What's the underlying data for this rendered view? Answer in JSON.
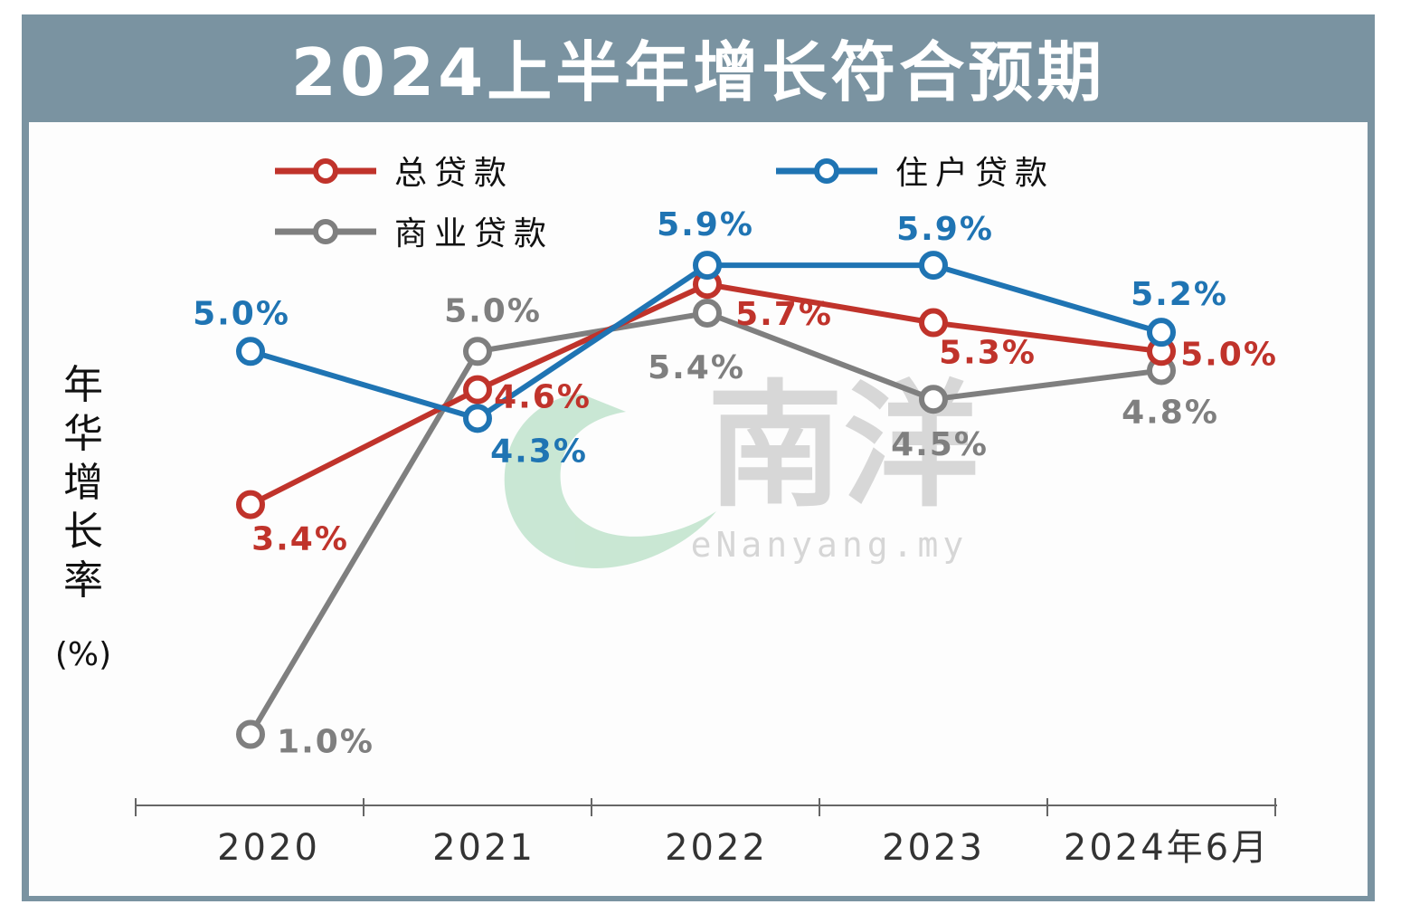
{
  "title": "2024上半年增长符合预期",
  "watermark": {
    "logo_text": "南洋",
    "site": "eNanyang.my"
  },
  "chart_data": {
    "type": "line",
    "title": "2024上半年增长符合预期",
    "categories": [
      "2020",
      "2021",
      "2022",
      "2023",
      "2024年6月"
    ],
    "ylabel_chars": [
      "年",
      "华",
      "增",
      "长",
      "率"
    ],
    "ylabel_unit": "(%)",
    "xlabel": "",
    "ylim": [
      0.5,
      6.2
    ],
    "grid": false,
    "legend_position": "top-left",
    "series": [
      {
        "name": "总贷款",
        "color": "#c0332b",
        "values": [
          3.4,
          4.6,
          5.7,
          5.3,
          5.0
        ],
        "labels": [
          "3.4%",
          "4.6%",
          "5.7%",
          "5.3%",
          "5.0%"
        ]
      },
      {
        "name": "住户贷款",
        "color": "#1f74b3",
        "values": [
          5.0,
          4.3,
          5.9,
          5.9,
          5.2
        ],
        "labels": [
          "5.0%",
          "4.3%",
          "5.9%",
          "5.9%",
          "5.2%"
        ]
      },
      {
        "name": "商业贷款",
        "color": "#7f7f7f",
        "values": [
          1.0,
          5.0,
          5.4,
          4.5,
          4.8
        ],
        "labels": [
          "1.0%",
          "5.0%",
          "5.4%",
          "4.5%",
          "4.8%"
        ]
      }
    ]
  }
}
